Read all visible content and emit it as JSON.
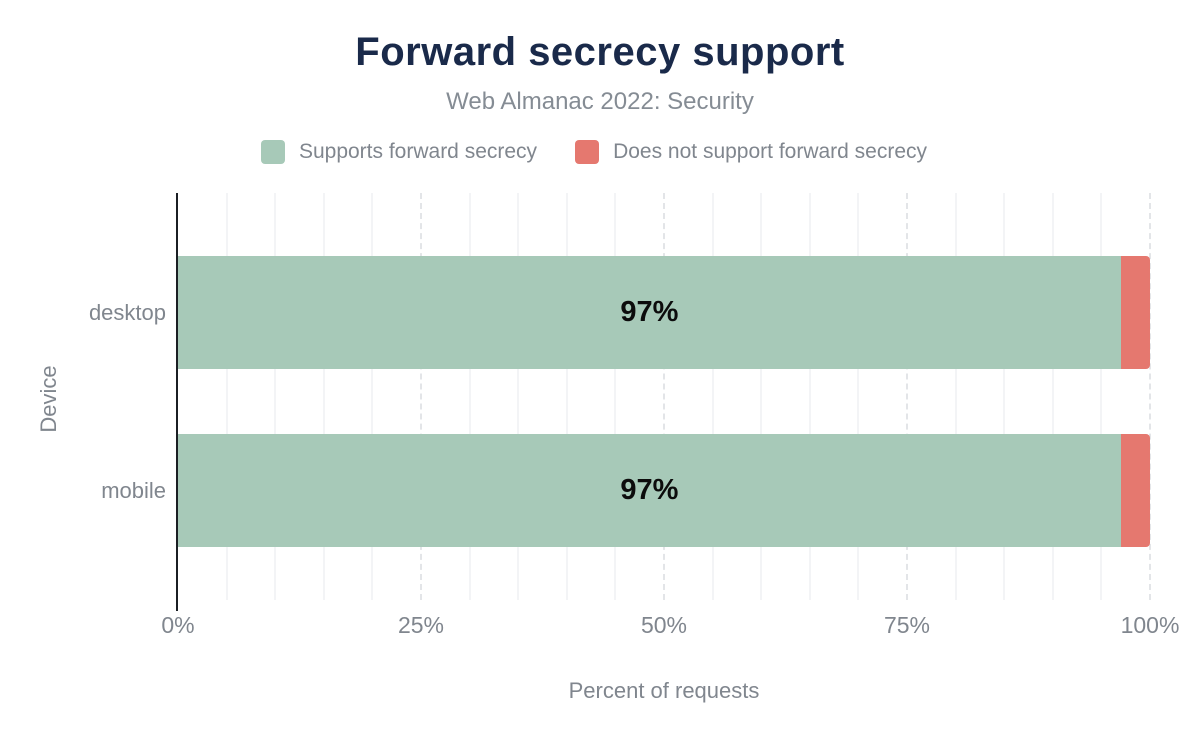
{
  "header": {
    "title": "Forward secrecy support",
    "subtitle": "Web Almanac 2022: Security"
  },
  "legend": [
    {
      "label": "Supports forward secrecy",
      "color": "#a7c9b8"
    },
    {
      "label": "Does not support forward secrecy",
      "color": "#e5786f"
    }
  ],
  "colors": {
    "title": "#1a2a4a",
    "muted_text": "#80868e",
    "supports": "#a7c9b8",
    "not_supports": "#e5786f",
    "axis_line": "#1b1f24",
    "grid_minor": "#f3f4f6",
    "grid_major": "#e3e5e8",
    "bar_label": "#0c0c0c"
  },
  "chart_data": {
    "type": "bar",
    "orientation": "horizontal",
    "stacked": true,
    "title": "Forward secrecy support",
    "subtitle": "Web Almanac 2022: Security",
    "categories": [
      "desktop",
      "mobile"
    ],
    "series": [
      {
        "name": "Supports forward secrecy",
        "color": "#a7c9b8",
        "values": [
          97,
          97
        ]
      },
      {
        "name": "Does not support forward secrecy",
        "color": "#e5786f",
        "values": [
          3,
          3
        ]
      }
    ],
    "bar_labels": [
      "97%",
      "97%"
    ],
    "xlabel": "Percent of requests",
    "ylabel": "Device",
    "xlim": [
      0,
      100
    ],
    "xticks": [
      "0%",
      "25%",
      "50%",
      "75%",
      "100%"
    ],
    "xtick_values": [
      0,
      25,
      50,
      75,
      100
    ],
    "minor_grid_step": 5,
    "grid": "vertical",
    "legend_position": "top"
  }
}
